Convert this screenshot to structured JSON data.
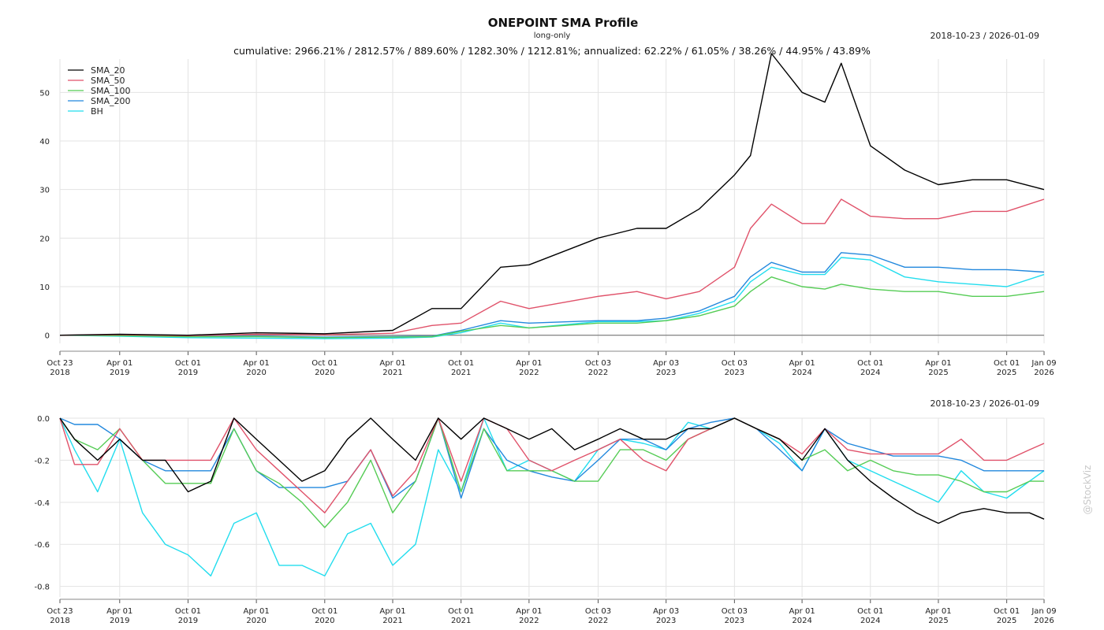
{
  "chart_data": [
    {
      "type": "line",
      "title": "ONEPOINT SMA Profile",
      "subtitle": "long-only",
      "stats": "cumulative: 2966.21% / 2812.57% / 889.60% / 1282.30% / 1212.81%; annualized: 62.22% / 61.05% / 38.26% / 44.95% / 43.89%",
      "date_range": "2018-10-23 / 2026-01-09",
      "ylim": [
        -2,
        58
      ],
      "yticks": [
        0,
        10,
        20,
        30,
        40,
        50
      ],
      "ytick_labels": [
        "0",
        "10",
        "20",
        "30",
        "40",
        "50"
      ],
      "xticks": [
        {
          "x": "2018-10-23",
          "line1": "Oct 23",
          "line2": "2018"
        },
        {
          "x": "2019-04-01",
          "line1": "Apr 01",
          "line2": "2019"
        },
        {
          "x": "2019-10-01",
          "line1": "Oct 01",
          "line2": "2019"
        },
        {
          "x": "2020-04-01",
          "line1": "Apr 01",
          "line2": "2020"
        },
        {
          "x": "2020-10-01",
          "line1": "Oct 01",
          "line2": "2020"
        },
        {
          "x": "2021-04-01",
          "line1": "Apr 01",
          "line2": "2021"
        },
        {
          "x": "2021-10-01",
          "line1": "Oct 01",
          "line2": "2021"
        },
        {
          "x": "2022-04-01",
          "line1": "Apr 01",
          "line2": "2022"
        },
        {
          "x": "2022-10-03",
          "line1": "Oct 03",
          "line2": "2022"
        },
        {
          "x": "2023-04-03",
          "line1": "Apr 03",
          "line2": "2023"
        },
        {
          "x": "2023-10-03",
          "line1": "Oct 03",
          "line2": "2023"
        },
        {
          "x": "2024-04-01",
          "line1": "Apr 01",
          "line2": "2024"
        },
        {
          "x": "2024-10-01",
          "line1": "Oct 01",
          "line2": "2024"
        },
        {
          "x": "2025-04-01",
          "line1": "Apr 01",
          "line2": "2025"
        },
        {
          "x": "2025-10-01",
          "line1": "Oct 01",
          "line2": "2025"
        },
        {
          "x": "2026-01-09",
          "line1": "Jan 09",
          "line2": "2026"
        }
      ],
      "legend_position": "top-left",
      "grid": true,
      "series": [
        {
          "name": "SMA_20",
          "color": "#000000",
          "x": [
            "2018-10-23",
            "2019-04-01",
            "2019-10-01",
            "2020-04-01",
            "2020-10-01",
            "2021-04-01",
            "2021-07-15",
            "2021-10-01",
            "2022-01-15",
            "2022-04-01",
            "2022-10-03",
            "2023-01-15",
            "2023-04-03",
            "2023-07-01",
            "2023-10-03",
            "2023-11-15",
            "2024-01-10",
            "2024-04-01",
            "2024-06-01",
            "2024-07-15",
            "2024-10-01",
            "2025-01-01",
            "2025-04-01",
            "2025-07-01",
            "2025-10-01",
            "2026-01-09"
          ],
          "values": [
            0,
            0.2,
            0,
            0.5,
            0.3,
            1.0,
            5.5,
            5.5,
            14,
            14.5,
            20,
            22,
            22,
            26,
            33,
            37,
            58,
            50,
            48,
            56,
            39,
            34,
            31,
            32,
            32,
            30
          ]
        },
        {
          "name": "SMA_50",
          "color": "#e0526a",
          "x": [
            "2018-10-23",
            "2019-04-01",
            "2019-10-01",
            "2020-04-01",
            "2020-10-01",
            "2021-04-01",
            "2021-07-15",
            "2021-10-01",
            "2022-01-15",
            "2022-04-01",
            "2022-10-03",
            "2023-01-15",
            "2023-04-03",
            "2023-07-01",
            "2023-10-03",
            "2023-11-15",
            "2024-01-10",
            "2024-04-01",
            "2024-06-01",
            "2024-07-15",
            "2024-10-01",
            "2025-01-01",
            "2025-04-01",
            "2025-07-01",
            "2025-10-01",
            "2026-01-09"
          ],
          "values": [
            0,
            0.1,
            -0.1,
            0.2,
            0.1,
            0.4,
            2,
            2.5,
            7,
            5.5,
            8,
            9,
            7.5,
            9,
            14,
            22,
            27,
            23,
            23,
            28,
            24.5,
            24,
            24,
            25.5,
            25.5,
            28
          ]
        },
        {
          "name": "SMA_100",
          "color": "#55cc55",
          "x": [
            "2018-10-23",
            "2019-04-01",
            "2019-10-01",
            "2020-04-01",
            "2020-10-01",
            "2021-04-01",
            "2021-07-15",
            "2021-10-01",
            "2022-01-15",
            "2022-04-01",
            "2022-10-03",
            "2023-01-15",
            "2023-04-03",
            "2023-07-01",
            "2023-10-03",
            "2023-11-15",
            "2024-01-10",
            "2024-04-01",
            "2024-06-01",
            "2024-07-15",
            "2024-10-01",
            "2025-01-01",
            "2025-04-01",
            "2025-07-01",
            "2025-10-01",
            "2026-01-09"
          ],
          "values": [
            0,
            -0.1,
            -0.3,
            -0.3,
            -0.5,
            -0.4,
            -0.3,
            0.8,
            2,
            1.5,
            2.5,
            2.5,
            3,
            4,
            6,
            9,
            12,
            10,
            9.5,
            10.5,
            9.5,
            9,
            9,
            8,
            8,
            9
          ]
        },
        {
          "name": "SMA_200",
          "color": "#2288dd",
          "x": [
            "2018-10-23",
            "2019-04-01",
            "2019-10-01",
            "2020-04-01",
            "2020-10-01",
            "2021-04-01",
            "2021-07-15",
            "2021-10-01",
            "2022-01-15",
            "2022-04-01",
            "2022-10-03",
            "2023-01-15",
            "2023-04-03",
            "2023-07-01",
            "2023-10-03",
            "2023-11-15",
            "2024-01-10",
            "2024-04-01",
            "2024-06-01",
            "2024-07-15",
            "2024-10-01",
            "2025-01-01",
            "2025-04-01",
            "2025-07-01",
            "2025-10-01",
            "2026-01-09"
          ],
          "values": [
            0,
            0,
            -0.2,
            -0.2,
            -0.4,
            -0.3,
            -0.2,
            1,
            3,
            2.5,
            3,
            3,
            3.5,
            5,
            8,
            12,
            15,
            13,
            13,
            17,
            16.5,
            14,
            14,
            13.5,
            13.5,
            13
          ]
        },
        {
          "name": "BH",
          "color": "#22ddee",
          "x": [
            "2018-10-23",
            "2019-04-01",
            "2019-10-01",
            "2020-04-01",
            "2020-10-01",
            "2021-04-01",
            "2021-07-15",
            "2021-10-01",
            "2022-01-15",
            "2022-04-01",
            "2022-10-03",
            "2023-01-15",
            "2023-04-03",
            "2023-07-01",
            "2023-10-03",
            "2023-11-15",
            "2024-01-10",
            "2024-04-01",
            "2024-06-01",
            "2024-07-15",
            "2024-10-01",
            "2025-01-01",
            "2025-04-01",
            "2025-07-01",
            "2025-10-01",
            "2026-01-09"
          ],
          "values": [
            0,
            -0.2,
            -0.5,
            -0.6,
            -0.7,
            -0.6,
            -0.4,
            0.5,
            2.5,
            1.5,
            2.8,
            2.8,
            3,
            4.5,
            7,
            11,
            14,
            12.5,
            12.5,
            16,
            15.5,
            12,
            11,
            10.5,
            10,
            12.5
          ]
        }
      ]
    },
    {
      "type": "line",
      "date_range": "2018-10-23 / 2026-01-09",
      "ylim": [
        -0.85,
        0
      ],
      "yticks": [
        0,
        -0.2,
        -0.4,
        -0.6,
        -0.8
      ],
      "ytick_labels": [
        "0.0",
        "-0.2",
        "-0.4",
        "-0.6",
        "-0.8"
      ],
      "grid": true,
      "series": [
        {
          "name": "SMA_20",
          "color": "#000000",
          "x": [
            "2018-10-23",
            "2018-12-01",
            "2019-02-01",
            "2019-04-01",
            "2019-06-01",
            "2019-08-01",
            "2019-10-01",
            "2019-12-01",
            "2020-02-01",
            "2020-04-01",
            "2020-06-01",
            "2020-08-01",
            "2020-10-01",
            "2020-12-01",
            "2021-02-01",
            "2021-04-01",
            "2021-06-01",
            "2021-08-01",
            "2021-10-01",
            "2021-12-01",
            "2022-02-01",
            "2022-04-01",
            "2022-06-01",
            "2022-08-01",
            "2022-10-03",
            "2022-12-01",
            "2023-02-01",
            "2023-04-03",
            "2023-06-01",
            "2023-08-01",
            "2023-10-03",
            "2023-12-01",
            "2024-02-01",
            "2024-04-01",
            "2024-06-01",
            "2024-08-01",
            "2024-10-01",
            "2024-12-01",
            "2025-02-01",
            "2025-04-01",
            "2025-06-01",
            "2025-08-01",
            "2025-10-01",
            "2025-12-01",
            "2026-01-09"
          ],
          "values": [
            0,
            -0.1,
            -0.2,
            -0.1,
            -0.2,
            -0.2,
            -0.35,
            -0.3,
            0,
            -0.1,
            -0.2,
            -0.3,
            -0.25,
            -0.1,
            0,
            -0.1,
            -0.2,
            0,
            -0.1,
            0,
            -0.05,
            -0.1,
            -0.05,
            -0.15,
            -0.1,
            -0.05,
            -0.1,
            -0.1,
            -0.05,
            -0.05,
            0,
            -0.05,
            -0.1,
            -0.2,
            -0.05,
            -0.2,
            -0.3,
            -0.38,
            -0.45,
            -0.5,
            -0.45,
            -0.43,
            -0.45,
            -0.45,
            -0.48
          ]
        },
        {
          "name": "SMA_50",
          "color": "#e0526a",
          "x": [
            "2018-10-23",
            "2018-12-01",
            "2019-02-01",
            "2019-04-01",
            "2019-06-01",
            "2019-08-01",
            "2019-10-01",
            "2019-12-01",
            "2020-02-01",
            "2020-04-01",
            "2020-06-01",
            "2020-08-01",
            "2020-10-01",
            "2020-12-01",
            "2021-02-01",
            "2021-04-01",
            "2021-06-01",
            "2021-08-01",
            "2021-10-01",
            "2021-12-01",
            "2022-02-01",
            "2022-04-01",
            "2022-06-01",
            "2022-08-01",
            "2022-10-03",
            "2022-12-01",
            "2023-02-01",
            "2023-04-03",
            "2023-06-01",
            "2023-08-01",
            "2023-10-03",
            "2023-12-01",
            "2024-02-01",
            "2024-04-01",
            "2024-06-01",
            "2024-08-01",
            "2024-10-01",
            "2024-12-01",
            "2025-02-01",
            "2025-04-01",
            "2025-06-01",
            "2025-08-01",
            "2025-10-01",
            "2025-12-01",
            "2026-01-09"
          ],
          "values": [
            0,
            -0.22,
            -0.22,
            -0.05,
            -0.2,
            -0.2,
            -0.2,
            -0.2,
            0,
            -0.15,
            -0.25,
            -0.35,
            -0.45,
            -0.3,
            -0.15,
            -0.37,
            -0.25,
            0,
            -0.3,
            0,
            -0.05,
            -0.2,
            -0.25,
            -0.2,
            -0.15,
            -0.1,
            -0.2,
            -0.25,
            -0.1,
            -0.05,
            0,
            -0.05,
            -0.1,
            -0.17,
            -0.05,
            -0.15,
            -0.17,
            -0.17,
            -0.17,
            -0.17,
            -0.1,
            -0.2,
            -0.2,
            -0.15,
            -0.12
          ]
        },
        {
          "name": "SMA_100",
          "color": "#55cc55",
          "x": [
            "2018-10-23",
            "2018-12-01",
            "2019-02-01",
            "2019-04-01",
            "2019-06-01",
            "2019-08-01",
            "2019-10-01",
            "2019-12-01",
            "2020-02-01",
            "2020-04-01",
            "2020-06-01",
            "2020-08-01",
            "2020-10-01",
            "2020-12-01",
            "2021-02-01",
            "2021-04-01",
            "2021-06-01",
            "2021-08-01",
            "2021-10-01",
            "2021-12-01",
            "2022-02-01",
            "2022-04-01",
            "2022-06-01",
            "2022-08-01",
            "2022-10-03",
            "2022-12-01",
            "2023-02-01",
            "2023-04-03",
            "2023-06-01",
            "2023-08-01",
            "2023-10-03",
            "2023-12-01",
            "2024-02-01",
            "2024-04-01",
            "2024-06-01",
            "2024-08-01",
            "2024-10-01",
            "2024-12-01",
            "2025-02-01",
            "2025-04-01",
            "2025-06-01",
            "2025-08-01",
            "2025-10-01",
            "2025-12-01",
            "2026-01-09"
          ],
          "values": [
            0,
            -0.1,
            -0.15,
            -0.05,
            -0.2,
            -0.31,
            -0.31,
            -0.31,
            -0.05,
            -0.25,
            -0.31,
            -0.4,
            -0.52,
            -0.4,
            -0.2,
            -0.45,
            -0.3,
            0,
            -0.35,
            -0.05,
            -0.25,
            -0.25,
            -0.25,
            -0.3,
            -0.3,
            -0.15,
            -0.15,
            -0.2,
            -0.1,
            -0.05,
            0,
            -0.05,
            -0.1,
            -0.2,
            -0.15,
            -0.25,
            -0.2,
            -0.25,
            -0.27,
            -0.27,
            -0.3,
            -0.35,
            -0.35,
            -0.3,
            -0.3
          ]
        },
        {
          "name": "SMA_200",
          "color": "#2288dd",
          "x": [
            "2018-10-23",
            "2018-12-01",
            "2019-02-01",
            "2019-04-01",
            "2019-06-01",
            "2019-08-01",
            "2019-10-01",
            "2019-12-01",
            "2020-02-01",
            "2020-04-01",
            "2020-06-01",
            "2020-08-01",
            "2020-10-01",
            "2020-12-01",
            "2021-02-01",
            "2021-04-01",
            "2021-06-01",
            "2021-08-01",
            "2021-10-01",
            "2021-12-01",
            "2022-02-01",
            "2022-04-01",
            "2022-06-01",
            "2022-08-01",
            "2022-10-03",
            "2022-12-01",
            "2023-02-01",
            "2023-04-03",
            "2023-06-01",
            "2023-08-01",
            "2023-10-03",
            "2023-12-01",
            "2024-02-01",
            "2024-04-01",
            "2024-06-01",
            "2024-08-01",
            "2024-10-01",
            "2024-12-01",
            "2025-02-01",
            "2025-04-01",
            "2025-06-01",
            "2025-08-01",
            "2025-10-01",
            "2025-12-01",
            "2026-01-09"
          ],
          "values": [
            0,
            -0.03,
            -0.03,
            -0.1,
            -0.2,
            -0.25,
            -0.25,
            -0.25,
            -0.05,
            -0.25,
            -0.33,
            -0.33,
            -0.33,
            -0.3,
            -0.15,
            -0.38,
            -0.3,
            0,
            -0.38,
            -0.05,
            -0.2,
            -0.25,
            -0.28,
            -0.3,
            -0.2,
            -0.1,
            -0.1,
            -0.15,
            -0.05,
            -0.02,
            0,
            -0.05,
            -0.15,
            -0.25,
            -0.05,
            -0.12,
            -0.15,
            -0.18,
            -0.18,
            -0.18,
            -0.2,
            -0.25,
            -0.25,
            -0.25,
            -0.25
          ]
        },
        {
          "name": "BH",
          "color": "#22ddee",
          "x": [
            "2018-10-23",
            "2018-12-01",
            "2019-02-01",
            "2019-04-01",
            "2019-06-01",
            "2019-08-01",
            "2019-10-01",
            "2019-12-01",
            "2020-02-01",
            "2020-04-01",
            "2020-06-01",
            "2020-08-01",
            "2020-10-01",
            "2020-12-01",
            "2021-02-01",
            "2021-04-01",
            "2021-06-01",
            "2021-08-01",
            "2021-10-01",
            "2021-12-01",
            "2022-02-01",
            "2022-04-01",
            "2022-06-01",
            "2022-08-01",
            "2022-10-03",
            "2022-12-01",
            "2023-02-01",
            "2023-04-03",
            "2023-06-01",
            "2023-08-01",
            "2023-10-03",
            "2023-12-01",
            "2024-02-01",
            "2024-04-01",
            "2024-06-01",
            "2024-08-01",
            "2024-10-01",
            "2024-12-01",
            "2025-02-01",
            "2025-04-01",
            "2025-06-01",
            "2025-08-01",
            "2025-10-01",
            "2025-12-01",
            "2026-01-09"
          ],
          "values": [
            0,
            -0.15,
            -0.35,
            -0.1,
            -0.45,
            -0.6,
            -0.65,
            -0.75,
            -0.5,
            -0.45,
            -0.7,
            -0.7,
            -0.75,
            -0.55,
            -0.5,
            -0.7,
            -0.6,
            -0.15,
            -0.35,
            0,
            -0.25,
            -0.2,
            -0.25,
            -0.3,
            -0.15,
            -0.1,
            -0.12,
            -0.15,
            -0.02,
            -0.05,
            0,
            -0.05,
            -0.12,
            -0.25,
            -0.05,
            -0.2,
            -0.25,
            -0.3,
            -0.35,
            -0.4,
            -0.25,
            -0.35,
            -0.38,
            -0.3,
            -0.25
          ]
        }
      ]
    }
  ],
  "watermark": "@StockViz"
}
